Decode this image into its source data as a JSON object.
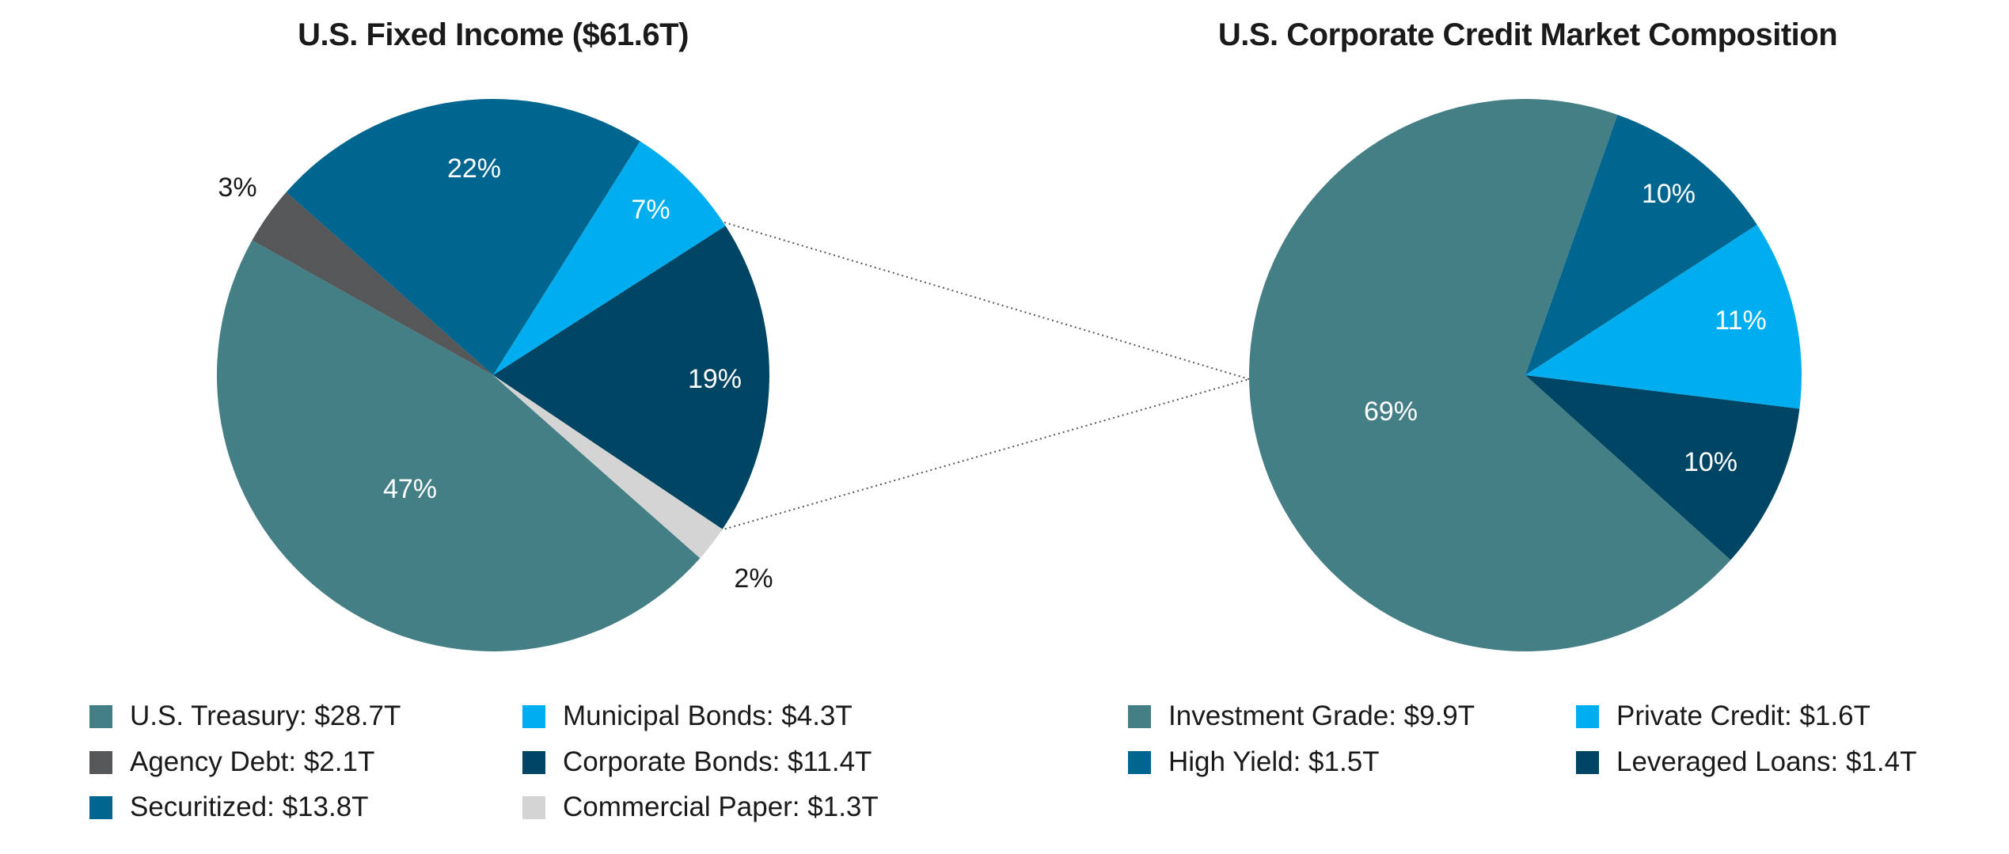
{
  "chart_data": [
    {
      "type": "pie",
      "title": "U.S. Fixed Income ($61.6T)",
      "units": "$T",
      "slices": [
        {
          "name": "U.S. Treasury",
          "value": 28.7,
          "pct_label": "47%",
          "legend": "U.S. Treasury: $28.7T",
          "color": "#457f86"
        },
        {
          "name": "Agency Debt",
          "value": 2.1,
          "pct_label": "3%",
          "legend": "Agency Debt: $2.1T",
          "color": "#555759"
        },
        {
          "name": "Securitized",
          "value": 13.8,
          "pct_label": "22%",
          "legend": "Securitized: $13.8T",
          "color": "#00668f"
        },
        {
          "name": "Municipal Bonds",
          "value": 4.3,
          "pct_label": "7%",
          "legend": "Municipal Bonds: $4.3T",
          "color": "#00aeef"
        },
        {
          "name": "Corporate Bonds",
          "value": 11.4,
          "pct_label": "19%",
          "legend": "Corporate Bonds: $11.4T",
          "color": "#004563"
        },
        {
          "name": "Commercial Paper",
          "value": 1.3,
          "pct_label": "2%",
          "legend": "Commercial Paper: $1.3T",
          "color": "#d4d4d4"
        }
      ]
    },
    {
      "type": "pie",
      "title": "U.S. Corporate Credit Market Composition",
      "units": "$T",
      "slices": [
        {
          "name": "Investment Grade",
          "value": 9.9,
          "pct_label": "69%",
          "legend": "Investment Grade: $9.9T",
          "color": "#457f86"
        },
        {
          "name": "High Yield",
          "value": 1.5,
          "pct_label": "10%",
          "legend": "High Yield: $1.5T",
          "color": "#00668f"
        },
        {
          "name": "Private Credit",
          "value": 1.6,
          "pct_label": "11%",
          "legend": "Private Credit: $1.6T",
          "color": "#00aeef"
        },
        {
          "name": "Leveraged Loans",
          "value": 1.4,
          "pct_label": "10%",
          "legend": "Leveraged Loans: $1.4T",
          "color": "#004563"
        }
      ]
    }
  ]
}
